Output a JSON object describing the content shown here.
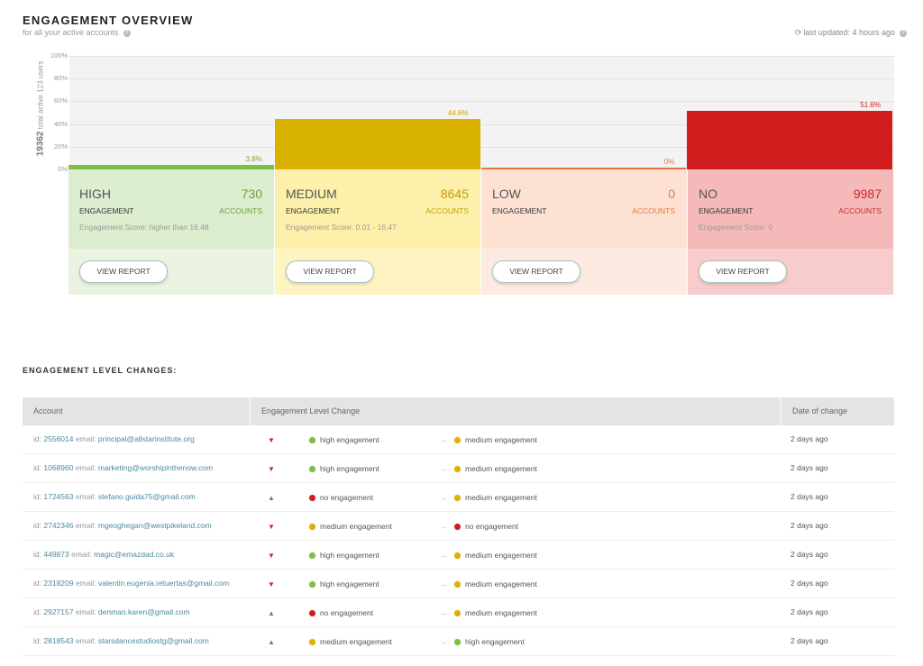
{
  "header": {
    "title": "ENGAGEMENT OVERVIEW",
    "subtitle": "for all your active accounts",
    "last_updated": "last updated: 4 hours ago",
    "help_glyph": "?"
  },
  "chart_data": {
    "type": "bar",
    "categories": [
      "HIGH",
      "MEDIUM",
      "LOW",
      "NO"
    ],
    "values": [
      3.8,
      44.6,
      0,
      51.6
    ],
    "value_labels": [
      "3.8%",
      "44.6%",
      "0%",
      "51.6%"
    ],
    "ylim": [
      0,
      100
    ],
    "yticks": [
      "100%",
      "80%",
      "60%",
      "40%",
      "20%",
      "0%"
    ],
    "ylabel_total": "19362",
    "ylabel_rest": "total active 123 users",
    "colors": [
      "#7bbf45",
      "#d9b200",
      "#e8753f",
      "#d01c1c"
    ],
    "label_colors": [
      "#7aa83b",
      "#d1a200",
      "#e8753f",
      "#d01c1c"
    ],
    "grid": true
  },
  "cards": [
    {
      "level": "HIGH",
      "count": "730",
      "engagement": "ENGAGEMENT",
      "accounts": "ACCOUNTS",
      "score": "Engagement Score: higher than 16.48",
      "button": "VIEW REPORT",
      "top_bg": "#dcedd0",
      "bottom_bg": "#e9f3e0",
      "accent": "#6f9f3a"
    },
    {
      "level": "MEDIUM",
      "count": "8645",
      "engagement": "ENGAGEMENT",
      "accounts": "ACCOUNTS",
      "score": "Engagement Score: 0.01 - 16.47",
      "button": "VIEW REPORT",
      "top_bg": "#fdf0aa",
      "bottom_bg": "#fdf4c2",
      "accent": "#c99a00"
    },
    {
      "level": "LOW",
      "count": "0",
      "engagement": "ENGAGEMENT",
      "accounts": "ACCOUNTS",
      "score": "",
      "button": "VIEW REPORT",
      "top_bg": "#fde2d4",
      "bottom_bg": "#fdeae1",
      "accent": "#e8753f"
    },
    {
      "level": "NO",
      "count": "9987",
      "engagement": "ENGAGEMENT",
      "accounts": "ACCOUNTS",
      "score": "Engagement Score: 0",
      "button": "VIEW REPORT",
      "top_bg": "#f6b9b9",
      "bottom_bg": "#f8cccc",
      "accent": "#c62828"
    }
  ],
  "changes": {
    "title": "ENGAGEMENT LEVEL CHANGES:",
    "columns": [
      "Account",
      "Engagement Level Change",
      "Date of change"
    ],
    "arrow_glyph": "→",
    "rows": [
      {
        "id_label": "id:",
        "id": "2556014",
        "email_label": "email:",
        "email": "principal@allstarinstitute.org",
        "trend": "down",
        "from": "high engagement",
        "from_color": "#7bbf45",
        "to": "medium engagement",
        "to_color": "#e0b000",
        "date": "2 days ago"
      },
      {
        "id_label": "id:",
        "id": "1068960",
        "email_label": "email:",
        "email": "marketing@worshipinthenow.com",
        "trend": "down",
        "from": "high engagement",
        "from_color": "#7bbf45",
        "to": "medium engagement",
        "to_color": "#e0b000",
        "date": "2 days ago"
      },
      {
        "id_label": "id:",
        "id": "1724563",
        "email_label": "email:",
        "email": "stefano.guida75@gmail.com",
        "trend": "up",
        "from": "no engagement",
        "from_color": "#d01c1c",
        "to": "medium engagement",
        "to_color": "#e0b000",
        "date": "2 days ago"
      },
      {
        "id_label": "id:",
        "id": "2742346",
        "email_label": "email:",
        "email": "mgeoghegan@westpikeland.com",
        "trend": "down",
        "from": "medium engagement",
        "from_color": "#e0b000",
        "to": "no engagement",
        "to_color": "#d01c1c",
        "date": "2 days ago"
      },
      {
        "id_label": "id:",
        "id": "449873",
        "email_label": "email:",
        "email": "magic@emazdad.co.uk",
        "trend": "down",
        "from": "high engagement",
        "from_color": "#7bbf45",
        "to": "medium engagement",
        "to_color": "#e0b000",
        "date": "2 days ago"
      },
      {
        "id_label": "id:",
        "id": "2318209",
        "email_label": "email:",
        "email": "valentin.eugenia.retuertas@gmail.com",
        "trend": "down",
        "from": "high engagement",
        "from_color": "#7bbf45",
        "to": "medium engagement",
        "to_color": "#e0b000",
        "date": "2 days ago"
      },
      {
        "id_label": "id:",
        "id": "2927157",
        "email_label": "email:",
        "email": "denman.karen@gmail.com",
        "trend": "up",
        "from": "no engagement",
        "from_color": "#d01c1c",
        "to": "medium engagement",
        "to_color": "#e0b000",
        "date": "2 days ago"
      },
      {
        "id_label": "id:",
        "id": "2818543",
        "email_label": "email:",
        "email": "starsdancestudiostg@gmail.com",
        "trend": "up",
        "from": "medium engagement",
        "from_color": "#e0b000",
        "to": "high engagement",
        "to_color": "#7bbf45",
        "date": "2 days ago"
      }
    ]
  }
}
